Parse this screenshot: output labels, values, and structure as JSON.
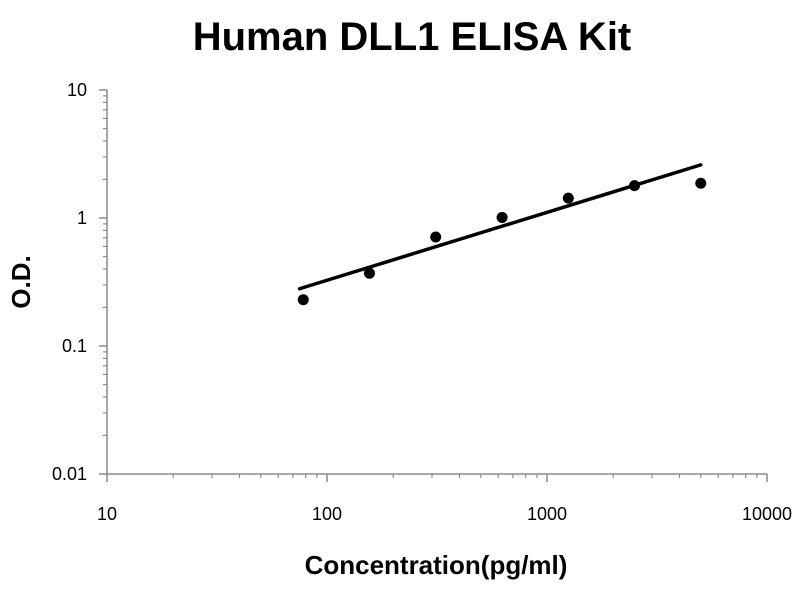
{
  "chart_data": {
    "type": "scatter",
    "title": "Human DLL1 ELISA Kit",
    "xlabel": "Concentration(pg/ml)",
    "ylabel": "O.D.",
    "x_scale": "log",
    "y_scale": "log",
    "xlim": [
      10,
      10000
    ],
    "ylim": [
      0.01,
      10
    ],
    "x_ticks": [
      10,
      100,
      1000,
      10000
    ],
    "x_tick_labels": [
      "10",
      "100",
      "1000",
      "10000"
    ],
    "y_ticks": [
      0.01,
      0.1,
      1,
      10
    ],
    "y_tick_labels": [
      "0.01",
      "0.1",
      "1",
      "10"
    ],
    "grid": false,
    "legend": "none",
    "series": [
      {
        "points": [
          {
            "x": 78,
            "y": 0.23
          },
          {
            "x": 156,
            "y": 0.37
          },
          {
            "x": 312,
            "y": 0.71
          },
          {
            "x": 625,
            "y": 1.01
          },
          {
            "x": 1250,
            "y": 1.43
          },
          {
            "x": 2500,
            "y": 1.79
          },
          {
            "x": 5000,
            "y": 1.87
          }
        ],
        "color": "#000000"
      }
    ],
    "trendline": {
      "type": "power",
      "points": [
        {
          "x": 75,
          "y": 0.28
        },
        {
          "x": 5000,
          "y": 2.6
        }
      ],
      "color": "#000000"
    }
  }
}
